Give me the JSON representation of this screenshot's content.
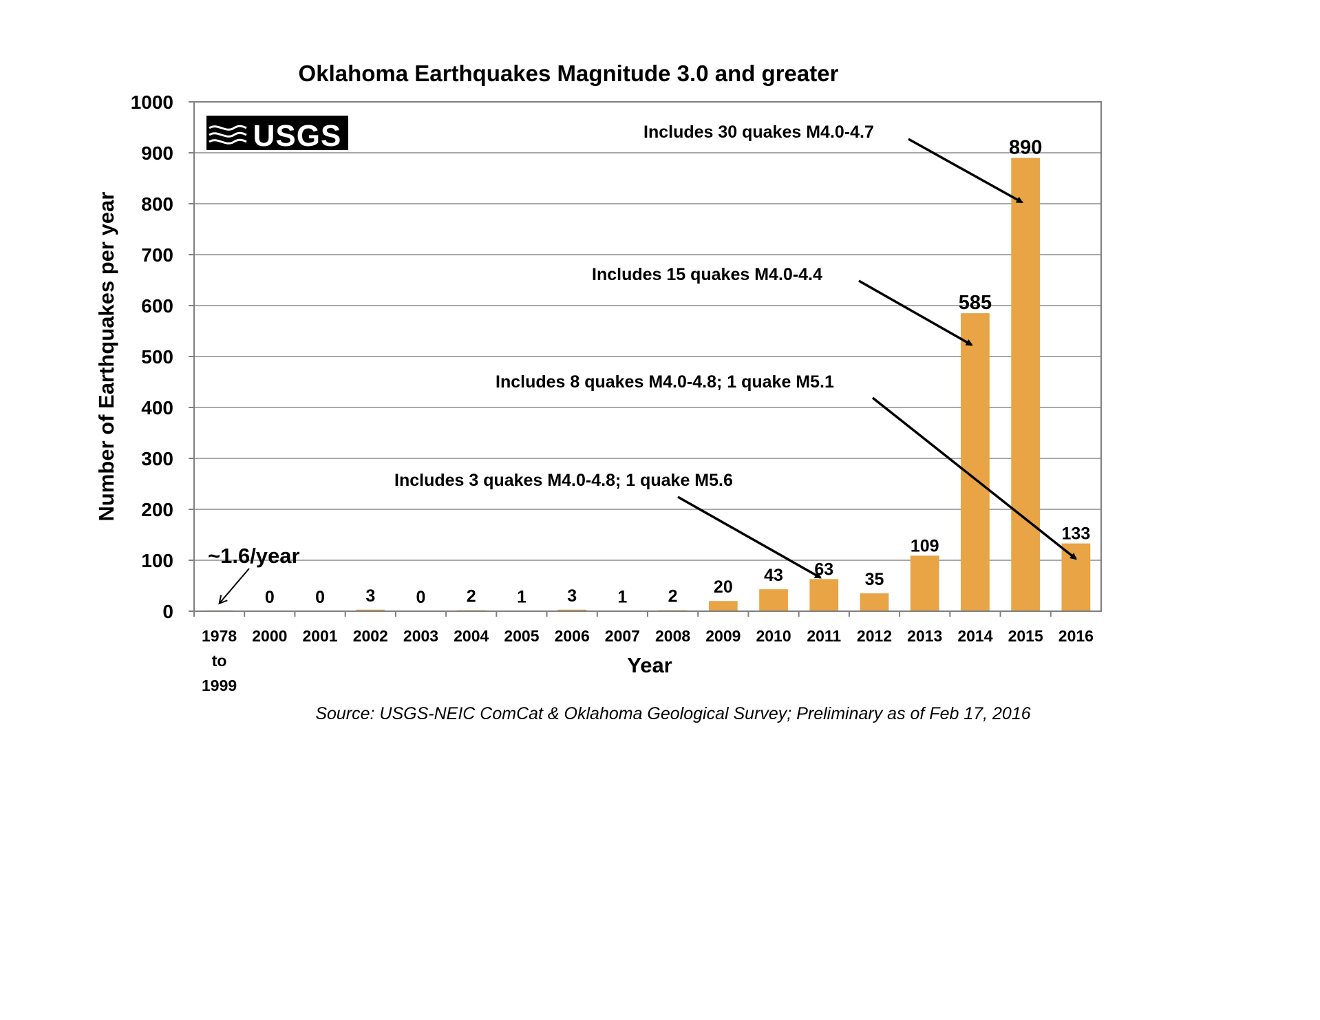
{
  "chart_data": {
    "type": "bar",
    "title": "Oklahoma Earthquakes Magnitude 3.0 and greater",
    "xlabel": "Year",
    "ylabel": "Number of Earthquakes per year",
    "ylim": [
      0,
      1000
    ],
    "yticks": [
      0,
      100,
      200,
      300,
      400,
      500,
      600,
      700,
      800,
      900,
      1000
    ],
    "grid": true,
    "bar_color": "#E8A445",
    "categories": [
      [
        "1978",
        "to",
        "1999"
      ],
      [
        "2000"
      ],
      [
        "2001"
      ],
      [
        "2002"
      ],
      [
        "2003"
      ],
      [
        "2004"
      ],
      [
        "2005"
      ],
      [
        "2006"
      ],
      [
        "2007"
      ],
      [
        "2008"
      ],
      [
        "2009"
      ],
      [
        "2010"
      ],
      [
        "2011"
      ],
      [
        "2012"
      ],
      [
        "2013"
      ],
      [
        "2014"
      ],
      [
        "2015"
      ],
      [
        "2016"
      ]
    ],
    "values": [
      1.6,
      0,
      0,
      3,
      0,
      2,
      1,
      3,
      1,
      2,
      20,
      43,
      63,
      35,
      109,
      585,
      890,
      133
    ],
    "data_labels": [
      "",
      "0",
      "0",
      "3",
      "0",
      "2",
      "1",
      "3",
      "1",
      "2",
      "20",
      "43",
      "63",
      "35",
      "109",
      "585",
      "890",
      "133"
    ],
    "annotations": [
      {
        "text": "~1.6/year",
        "target_index": 0,
        "target_value": 1.6
      },
      {
        "text": "Includes 3 quakes M4.0-4.8; 1 quake M5.6",
        "target_index": 12,
        "target_value": 63
      },
      {
        "text": "Includes 8 quakes M4.0-4.8; 1 quake M5.1",
        "target_index": 17,
        "target_value": 100
      },
      {
        "text": "Includes 15 quakes M4.0-4.4",
        "target_index": 15,
        "target_value": 520
      },
      {
        "text": "Includes 30 quakes M4.0-4.7",
        "target_index": 16,
        "target_value": 800
      }
    ],
    "logo": "USGS",
    "source": "Source: USGS-NEIC ComCat & Oklahoma Geological Survey; Preliminary as of Feb 17, 2016"
  }
}
